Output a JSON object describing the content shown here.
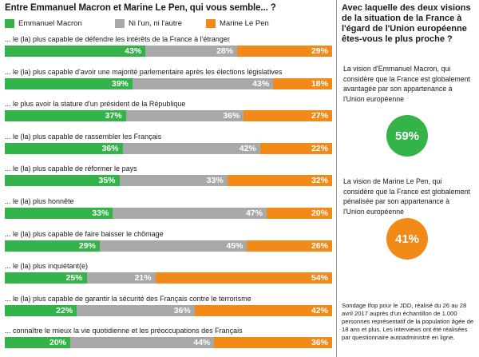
{
  "title": "Entre Emmanuel Macron et Marine Le Pen, qui vous semble... ?",
  "colors": {
    "macron": "#33b34a",
    "neither": "#a8a8a8",
    "lepen": "#f28a1a"
  },
  "legend": [
    "Emmanuel Macron",
    "Ni l'un, ni l'autre",
    "Marine Le Pen"
  ],
  "chart_data": {
    "type": "bar",
    "orientation": "horizontal-stacked-100",
    "categories": [
      "... le (la) plus capable de défendre les intérêts de la France à l'étranger",
      "... le (la) plus capable d'avoir une majorité parlementaire après les élections législatives",
      "... le plus avoir la stature d'un président de la République",
      "... le (la) plus capable de rassembler les Français",
      "... le (la) plus capable de réformer le pays",
      "... le (la) plus honnête",
      "... le (la) plus capable de faire baisser le chômage",
      "... le (la) plus inquiétant(e)",
      "... le (la) plus capable de garantir la sécurité des Français contre le terrorisme",
      "... connaître le mieux la vie quotidienne et les préoccupations des Français"
    ],
    "series": [
      {
        "name": "Emmanuel Macron",
        "values": [
          43,
          39,
          37,
          36,
          35,
          33,
          29,
          25,
          22,
          20
        ]
      },
      {
        "name": "Ni l'un, ni l'autre",
        "values": [
          28,
          43,
          36,
          42,
          33,
          47,
          45,
          21,
          36,
          44
        ]
      },
      {
        "name": "Marine Le Pen",
        "values": [
          29,
          18,
          27,
          22,
          32,
          20,
          26,
          54,
          42,
          36
        ]
      }
    ],
    "value_suffix": "%",
    "legend_position": "top"
  },
  "side": {
    "title": "Avec laquelle des deux visions de la situation de la France à l'égard de l'Union européenne êtes-vous le plus proche ?",
    "macron_text": "La vision d'Emmanuel Macron, qui considère que la France est globalement avantagée par son appartenance à l'Union européenne",
    "macron_value": "59%",
    "lepen_text": "La vision de  Marine Le Pen, qui considère que la France est globalement pénalisée par son appartenance à l'Union européenne",
    "lepen_value": "41%",
    "source": "Sondage Ifop pour le JDD, réalisé du 26 au 28 avril 2017  auprès d'un échantillon de 1.000 personnes représentatif de la population âgée de 18 ans et plus. Les interviews ont été réalisées par questionnaire autoadministré en ligne."
  }
}
